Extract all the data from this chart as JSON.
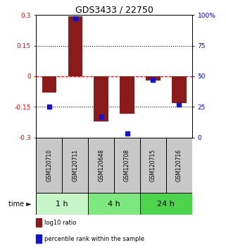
{
  "title": "GDS3433 / 22750",
  "samples": [
    "GSM120710",
    "GSM120711",
    "GSM120648",
    "GSM120708",
    "GSM120715",
    "GSM120716"
  ],
  "log10_ratio": [
    -0.08,
    0.295,
    -0.22,
    -0.185,
    -0.02,
    -0.13
  ],
  "percentile_rank": [
    25,
    97,
    17,
    3,
    47,
    27
  ],
  "ylim_left": [
    -0.3,
    0.3
  ],
  "ylim_right": [
    0,
    100
  ],
  "bar_color": "#8B1A1A",
  "dot_color": "#1414CC",
  "yticks_left": [
    -0.3,
    -0.15,
    0,
    0.15,
    0.3
  ],
  "yticks_right": [
    0,
    25,
    50,
    75,
    100
  ],
  "ytick_labels_left": [
    "-0.3",
    "-0.15",
    "0",
    "0.15",
    "0.3"
  ],
  "ytick_labels_right": [
    "0",
    "25",
    "50",
    "75",
    "100%"
  ],
  "hlines": [
    0.15,
    0.0,
    -0.15
  ],
  "hline_styles": [
    "dotted",
    "dotted_red",
    "dotted"
  ],
  "time_groups": [
    {
      "label": "1 h",
      "start": 0,
      "end": 2,
      "color": "#c8f5c8"
    },
    {
      "label": "4 h",
      "start": 2,
      "end": 4,
      "color": "#7de87d"
    },
    {
      "label": "24 h",
      "start": 4,
      "end": 6,
      "color": "#4dd44d"
    }
  ],
  "legend_items": [
    {
      "label": "log10 ratio",
      "color": "#8B1A1A"
    },
    {
      "label": "percentile rank within the sample",
      "color": "#1414CC"
    }
  ],
  "bar_width": 0.55,
  "sample_box_color": "#c8c8c8",
  "figsize": [
    3.21,
    3.54
  ],
  "dpi": 100
}
